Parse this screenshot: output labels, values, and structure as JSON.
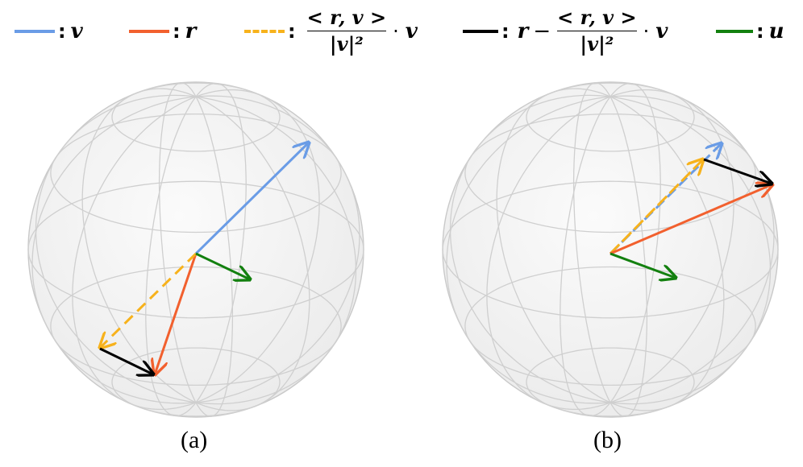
{
  "legend": {
    "v_symbol": "v",
    "r_symbol": "r",
    "proj_numerator": "< r, v >",
    "proj_denominator": "|v|²",
    "proj_factor": "v",
    "orth_lead": "r",
    "orth_numerator": "< r, v >",
    "orth_denominator": "|v|²",
    "orth_factor": "v",
    "u_symbol": "u",
    "colon": ":",
    "dot": "·",
    "minus": "−"
  },
  "colors": {
    "v": "#6a9ce6",
    "r": "#f2602e",
    "projection": "#f7b21c",
    "orthogonal": "#000000",
    "u": "#13800f",
    "sphere_line": "#cfcfcf",
    "sphere_fill": "#f7f7f7"
  },
  "panels": [
    {
      "caption": "(a)"
    },
    {
      "caption": "(b)"
    }
  ]
}
